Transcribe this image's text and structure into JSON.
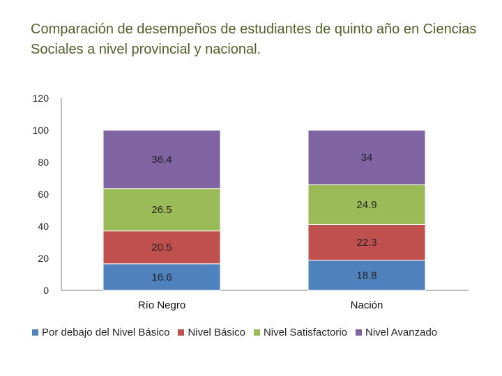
{
  "chart_data": {
    "type": "bar",
    "stacked": true,
    "title": "Comparación de desempeños de estudiantes de quinto año en Ciencias Sociales a nivel provincial y nacional.",
    "categories": [
      "Río Negro",
      "Nación"
    ],
    "series": [
      {
        "name": "Por debajo del Nivel Básico",
        "values": [
          16.6,
          18.8
        ],
        "labels": [
          "16.6",
          "18.8"
        ],
        "color": "#4f81bd"
      },
      {
        "name": "Nivel Básico",
        "values": [
          20.5,
          22.3
        ],
        "labels": [
          "20.5",
          "22.3"
        ],
        "color": "#c0504d"
      },
      {
        "name": "Nivel Satisfactorio",
        "values": [
          26.5,
          24.9
        ],
        "labels": [
          "26.5",
          "24.9"
        ],
        "color": "#9bbb59"
      },
      {
        "name": "Nivel Avanzado",
        "values": [
          36.4,
          34
        ],
        "labels": [
          "36.4",
          "34"
        ],
        "color": "#8064a2"
      }
    ],
    "yticks": [
      "0",
      "20",
      "40",
      "60",
      "80",
      "100",
      "120"
    ],
    "ylim": [
      0,
      120
    ],
    "grid": false,
    "legend_position": "bottom"
  }
}
